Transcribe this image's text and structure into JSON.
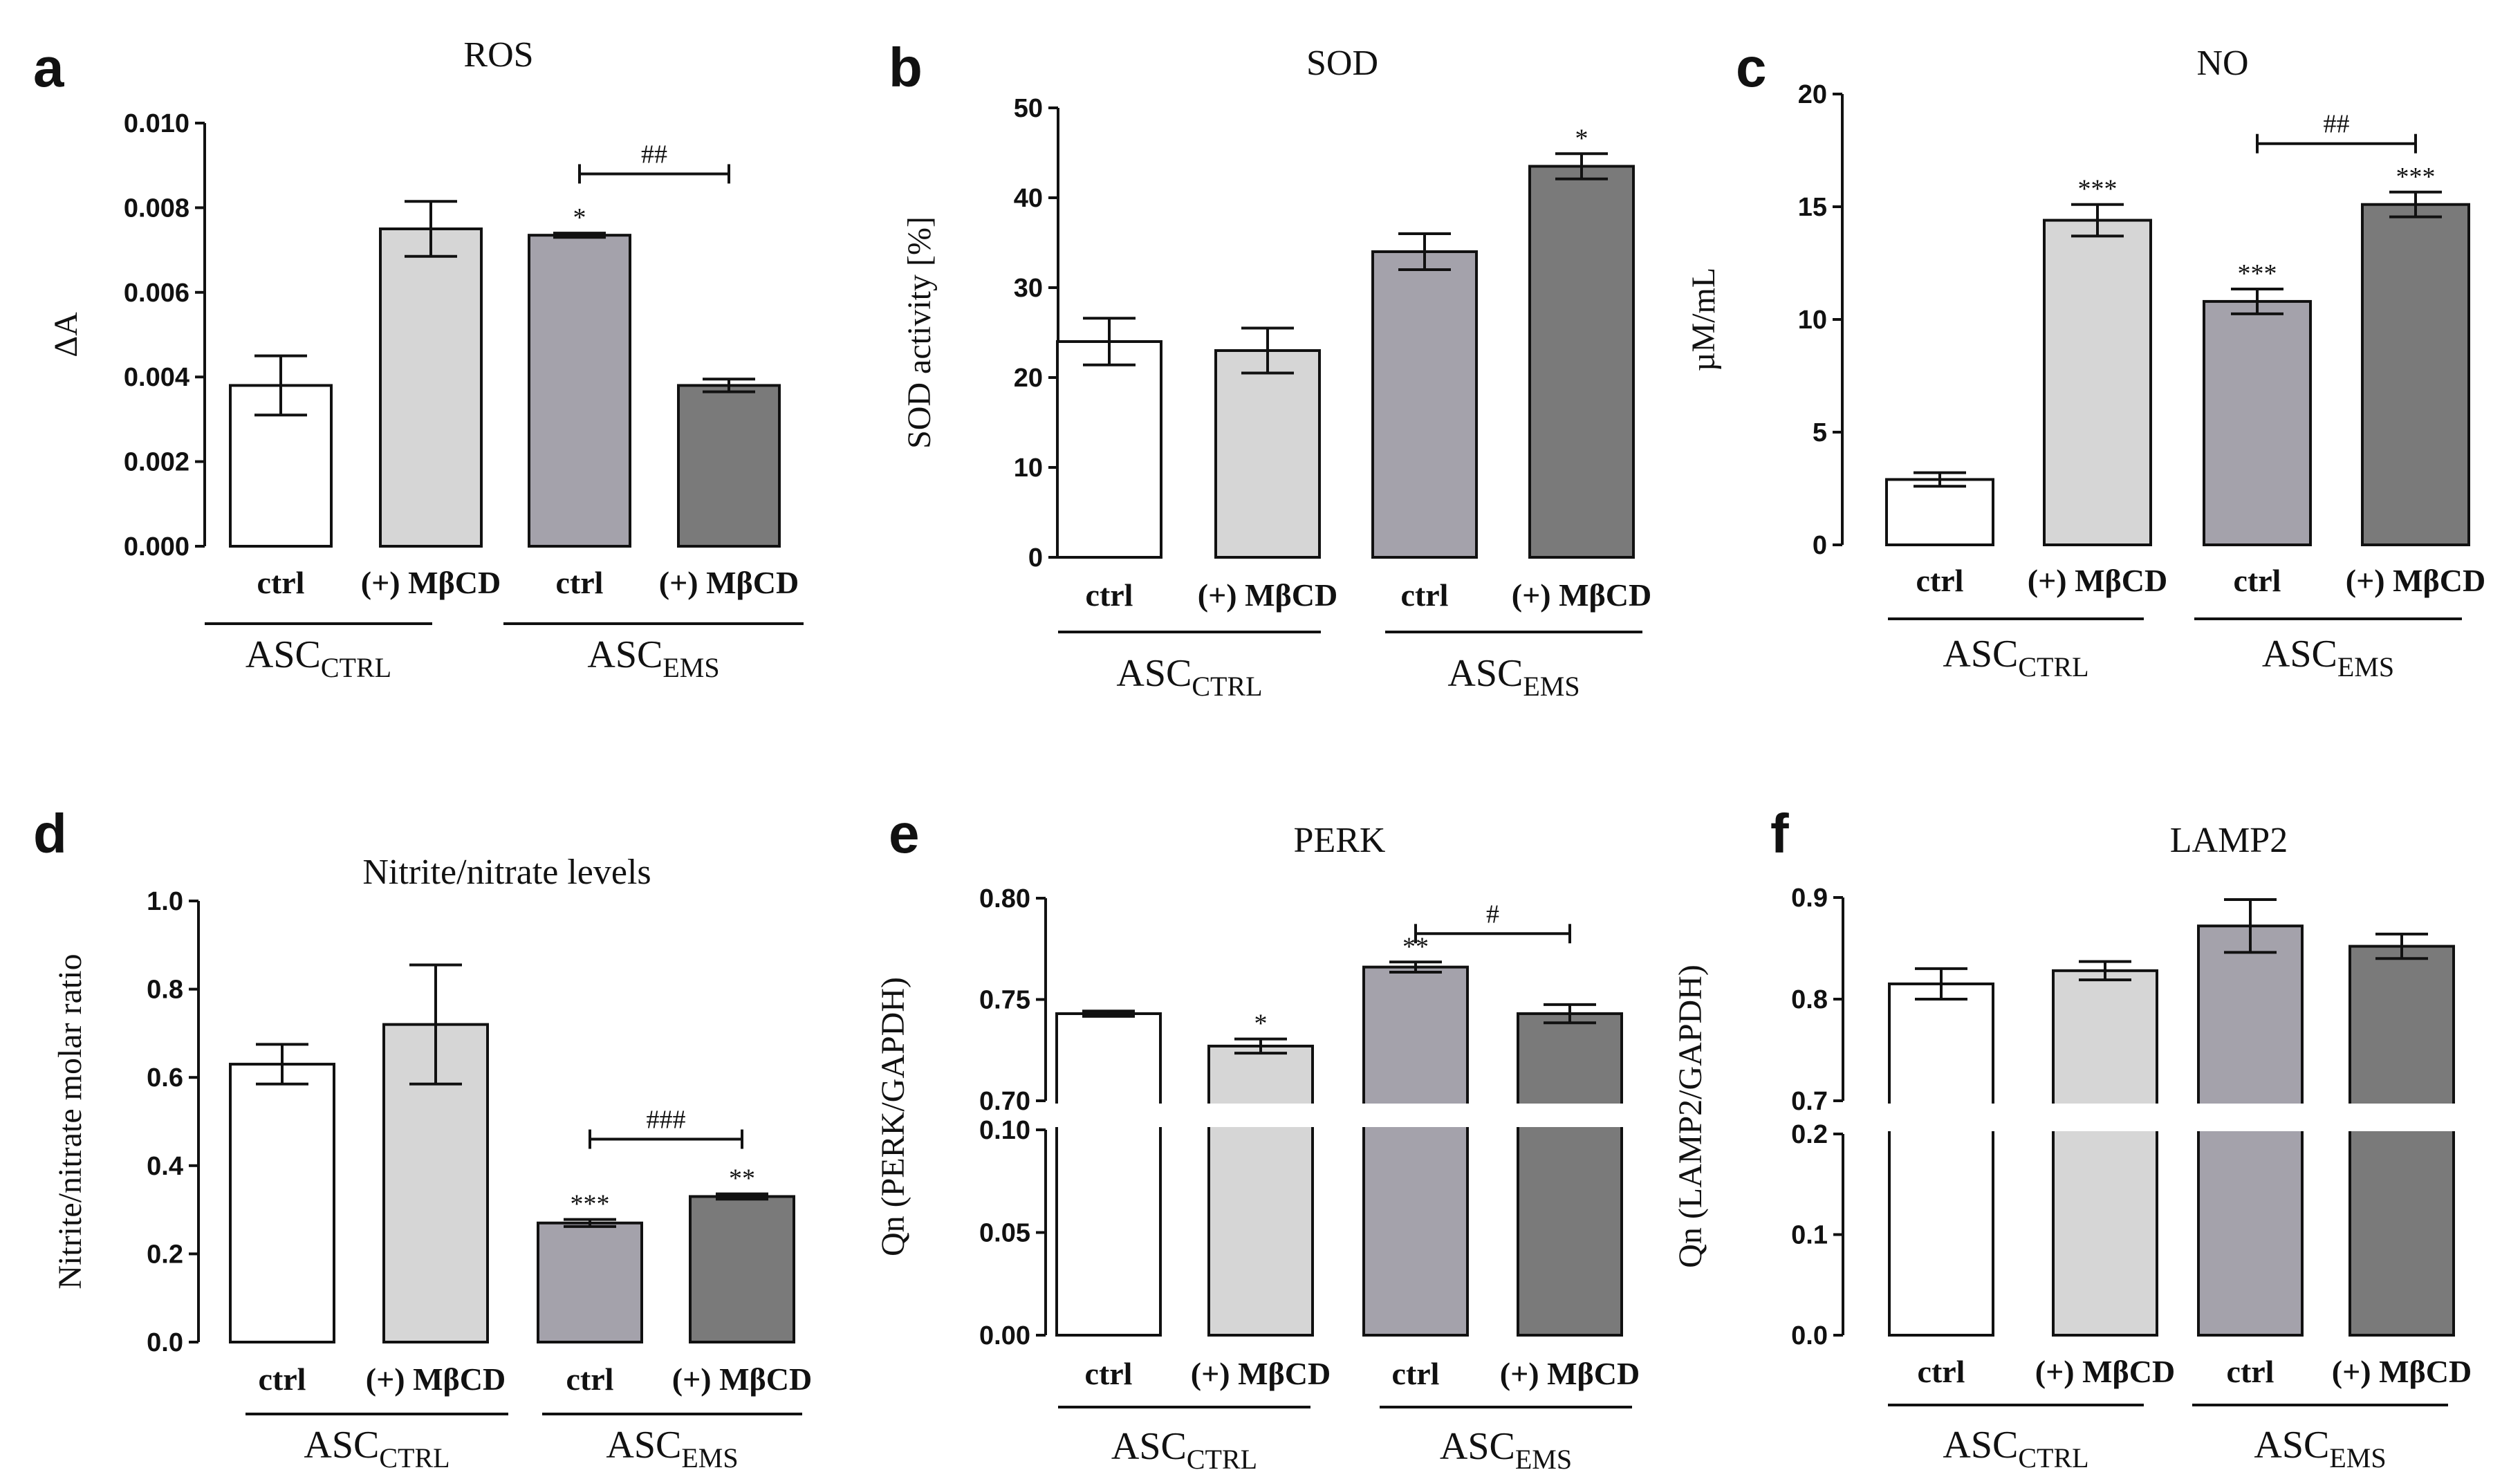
{
  "figure": {
    "colors": {
      "bar_ctrl": "#ffffff",
      "bar_mbcd": "#d6d6d6",
      "bar_ems_ctrl": "#a4a2ab",
      "bar_ems_mbcd": "#7a7a7a",
      "stroke": "#111111"
    }
  },
  "chart_data": [
    {
      "panel": "a",
      "type": "bar",
      "title": "ROS",
      "ylabel": "ΔA",
      "categories": [
        "ctrl",
        "(+) MβCD",
        "ctrl",
        "(+) MβCD"
      ],
      "groups": [
        {
          "label": "ASC",
          "sub": "CTRL"
        },
        {
          "label": "ASC",
          "sub": "EMS"
        }
      ],
      "values": [
        0.0038,
        0.0075,
        0.00735,
        0.0038
      ],
      "errors": [
        0.0007,
        0.00065,
        5e-05,
        0.00015
      ],
      "ylim": [
        0,
        0.01
      ],
      "ticks": [
        0,
        0.002,
        0.004,
        0.006,
        0.008,
        0.01
      ],
      "tick_labels": [
        "0.000",
        "0.002",
        "0.004",
        "0.006",
        "0.008",
        "0.010"
      ],
      "stars": [
        "",
        "",
        "*",
        ""
      ],
      "bracket": {
        "from": 2,
        "to": 3,
        "label": "##",
        "y": 0.0088
      }
    },
    {
      "panel": "b",
      "type": "bar",
      "title": "SOD",
      "ylabel": "SOD activity [%]",
      "categories": [
        "ctrl",
        "(+) MβCD",
        "ctrl",
        "(+) MβCD"
      ],
      "groups": [
        {
          "label": "ASC",
          "sub": "CTRL"
        },
        {
          "label": "ASC",
          "sub": "EMS"
        }
      ],
      "values": [
        24,
        23,
        34,
        43.5
      ],
      "errors": [
        2.6,
        2.5,
        2.0,
        1.4
      ],
      "ylim": [
        0,
        50
      ],
      "ticks": [
        0,
        10,
        20,
        30,
        40,
        50
      ],
      "tick_labels": [
        "0",
        "10",
        "20",
        "30",
        "40",
        "50"
      ],
      "stars": [
        "",
        "",
        "",
        "*"
      ],
      "bracket": null
    },
    {
      "panel": "c",
      "type": "bar",
      "title": "NO",
      "ylabel": "µM/mL",
      "categories": [
        "ctrl",
        "(+) MβCD",
        "ctrl",
        "(+) MβCD"
      ],
      "groups": [
        {
          "label": "ASC",
          "sub": "CTRL"
        },
        {
          "label": "ASC",
          "sub": "EMS"
        }
      ],
      "values": [
        2.9,
        14.4,
        10.8,
        15.1
      ],
      "errors": [
        0.3,
        0.7,
        0.55,
        0.55
      ],
      "ylim": [
        0,
        20
      ],
      "ticks": [
        0,
        5,
        10,
        15,
        20
      ],
      "tick_labels": [
        "0",
        "5",
        "10",
        "15",
        "20"
      ],
      "stars": [
        "",
        "***",
        "***",
        "***"
      ],
      "bracket": {
        "from": 2,
        "to": 3,
        "label": "##",
        "y": 17.8
      }
    },
    {
      "panel": "d",
      "type": "bar",
      "title": "Nitrite/nitrate levels",
      "ylabel": "Nitrite/nitrate molar ratio",
      "categories": [
        "ctrl",
        "(+) MβCD",
        "ctrl",
        "(+) MβCD"
      ],
      "groups": [
        {
          "label": "ASC",
          "sub": "CTRL"
        },
        {
          "label": "ASC",
          "sub": "EMS"
        }
      ],
      "values": [
        0.63,
        0.72,
        0.27,
        0.33
      ],
      "errors": [
        0.045,
        0.135,
        0.008,
        0.006
      ],
      "ylim": [
        0,
        1.0
      ],
      "ticks": [
        0,
        0.2,
        0.4,
        0.6,
        0.8,
        1.0
      ],
      "tick_labels": [
        "0.0",
        "0.2",
        "0.4",
        "0.6",
        "0.8",
        "1.0"
      ],
      "stars": [
        "",
        "",
        "***",
        "**"
      ],
      "bracket": {
        "from": 2,
        "to": 3,
        "label": "###",
        "y": 0.46
      }
    },
    {
      "panel": "e",
      "type": "bar",
      "title": "PERK",
      "ylabel": "Qn (PERK/GAPDH)",
      "categories": [
        "ctrl",
        "(+) MβCD",
        "ctrl",
        "(+) MβCD"
      ],
      "groups": [
        {
          "label": "ASC",
          "sub": "CTRL"
        },
        {
          "label": "ASC",
          "sub": "EMS"
        }
      ],
      "values": [
        0.743,
        0.727,
        0.766,
        0.743
      ],
      "errors": [
        0.0013,
        0.0035,
        0.0025,
        0.0045
      ],
      "broken_axis": {
        "lower": [
          0,
          0.1
        ],
        "upper": [
          0.7,
          0.8
        ]
      },
      "ticks_lower": [
        0,
        0.05,
        0.1
      ],
      "tick_labels_lower": [
        "0.00",
        "0.05",
        "0.10"
      ],
      "ticks_upper": [
        0.7,
        0.75,
        0.8
      ],
      "tick_labels_upper": [
        "0.70",
        "0.75",
        "0.80"
      ],
      "stars": [
        "",
        "*",
        "**",
        ""
      ],
      "bracket": {
        "from": 2,
        "to": 3,
        "label": "#",
        "y": 0.7825
      }
    },
    {
      "panel": "f",
      "type": "bar",
      "title": "LAMP2",
      "ylabel": "Qn (LAMP2/GAPDH)",
      "categories": [
        "ctrl",
        "(+) MβCD",
        "ctrl",
        "(+) MβCD"
      ],
      "groups": [
        {
          "label": "ASC",
          "sub": "CTRL"
        },
        {
          "label": "ASC",
          "sub": "EMS"
        }
      ],
      "values": [
        0.815,
        0.828,
        0.872,
        0.852
      ],
      "errors": [
        0.015,
        0.009,
        0.026,
        0.012
      ],
      "broken_axis": {
        "lower": [
          0,
          0.2
        ],
        "upper": [
          0.7,
          0.9
        ]
      },
      "ticks_lower": [
        0,
        0.1,
        0.2
      ],
      "tick_labels_lower": [
        "0.0",
        "0.1",
        "0.2"
      ],
      "ticks_upper": [
        0.7,
        0.8,
        0.9
      ],
      "tick_labels_upper": [
        "0.7",
        "0.8",
        "0.9"
      ],
      "stars": [
        "",
        "",
        "",
        ""
      ],
      "bracket": null
    }
  ]
}
